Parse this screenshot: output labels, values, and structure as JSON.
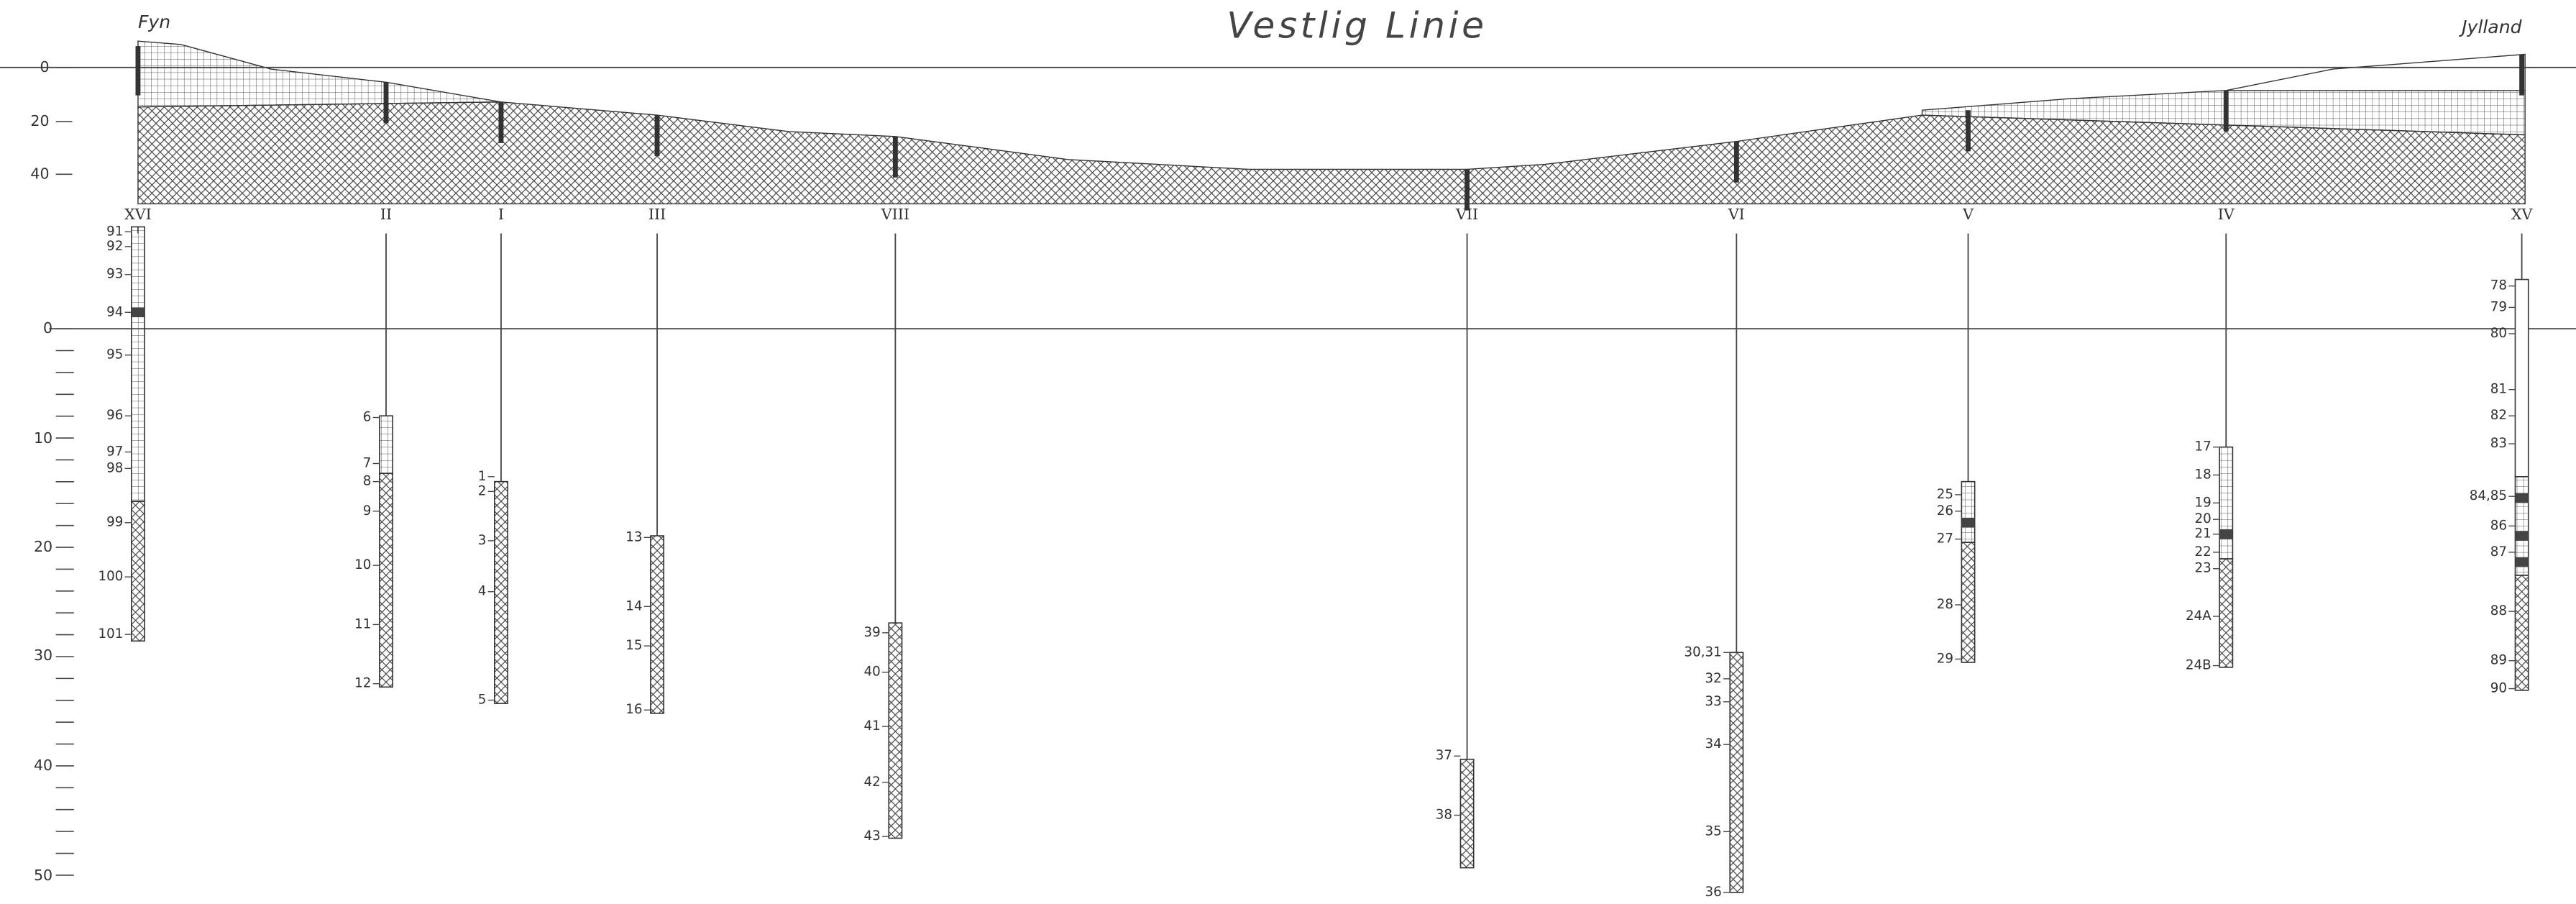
{
  "title": "Vestlig Linie",
  "places": {
    "left": "Fyn",
    "right": "Jylland"
  },
  "profile_axis": [
    "0",
    "20",
    "40"
  ],
  "depth_axis": [
    "0",
    "10",
    "20",
    "30",
    "40",
    "50"
  ],
  "boreholes": [
    {
      "name": "XVI",
      "samples": [
        "91",
        "92",
        "93",
        "94",
        "95",
        "96",
        "97",
        "98",
        "99",
        "100",
        "101"
      ]
    },
    {
      "name": "II",
      "samples": [
        "6",
        "7",
        "8",
        "9",
        "10",
        "11",
        "12"
      ]
    },
    {
      "name": "I",
      "samples": [
        "1",
        "2",
        "3",
        "4",
        "5"
      ]
    },
    {
      "name": "III",
      "samples": [
        "13",
        "14",
        "15",
        "16"
      ]
    },
    {
      "name": "VIII",
      "samples": [
        "39",
        "40",
        "41",
        "42",
        "43"
      ]
    },
    {
      "name": "VII",
      "samples": [
        "37",
        "38"
      ]
    },
    {
      "name": "VI",
      "samples": [
        "30,31",
        "32",
        "33",
        "34",
        "35",
        "36"
      ]
    },
    {
      "name": "V",
      "samples": [
        "25",
        "26",
        "27",
        "28",
        "29"
      ]
    },
    {
      "name": "IV",
      "samples": [
        "17",
        "18",
        "19",
        "20",
        "21",
        "22",
        "23",
        "24A",
        "24B"
      ]
    },
    {
      "name": "XV",
      "samples": [
        "78",
        "79",
        "80",
        "81",
        "82",
        "83",
        "84,85",
        "86",
        "87",
        "88",
        "89",
        "90"
      ]
    }
  ]
}
